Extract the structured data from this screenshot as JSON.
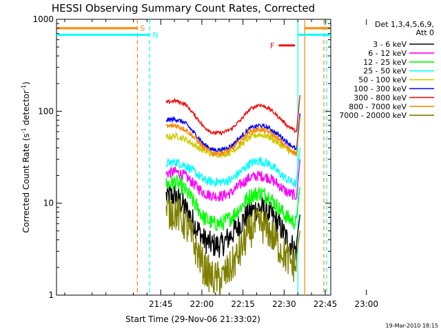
{
  "chart_data": {
    "type": "line",
    "title": "HESSI Observing Summary Count Rates, Corrected",
    "xlabel": "Start Time (29-Nov-06 21:33:02)",
    "ylabel_main": "Corrected Count Rate (s",
    "ylabel_sup1": "-1",
    "ylabel_mid": " detector",
    "ylabel_sup2": "-1",
    "ylabel_end": ")",
    "y_scale": "log",
    "ylim": [
      1,
      1000
    ],
    "y_ticks": [
      {
        "value": 1,
        "label": "1"
      },
      {
        "value": 10,
        "label": "10"
      },
      {
        "value": 100,
        "label": "100"
      },
      {
        "value": 1000,
        "label": "1000"
      }
    ],
    "xlim_minutes": [
      -53,
      47
    ],
    "x_ticks": [
      {
        "minute": -15,
        "label": "21:45"
      },
      {
        "minute": 0,
        "label": "22:00"
      },
      {
        "minute": 15,
        "label": "22:15"
      },
      {
        "minute": 30,
        "label": "22:30"
      },
      {
        "minute": 45,
        "label": "22:45"
      },
      {
        "minute": 60,
        "label": "23:00"
      }
    ],
    "legend_header1": "Det 1,3,4,5,6,9,",
    "legend_header2": "Att 0",
    "legend_placement": "right",
    "series": [
      {
        "name": "3 - 6 keV",
        "color": "#000000",
        "values": [
          12,
          12,
          9,
          6,
          4,
          3.5,
          3.5,
          4.5,
          6,
          8,
          9,
          8,
          6,
          4,
          3
        ],
        "noise": 0.28
      },
      {
        "name": "6 - 12 keV",
        "color": "#ff00ff",
        "values": [
          21,
          22,
          20,
          16,
          13,
          12,
          12,
          13,
          16,
          19,
          20,
          19,
          16,
          13,
          12
        ],
        "noise": 0.12
      },
      {
        "name": "12 - 25 keV",
        "color": "#00ff00",
        "values": [
          16,
          17,
          14,
          10,
          7,
          6,
          6,
          7,
          9,
          12,
          13,
          12,
          9,
          7,
          6
        ],
        "noise": 0.18
      },
      {
        "name": "25 - 50 keV",
        "color": "#00ffff",
        "values": [
          27,
          28,
          26,
          22,
          18,
          17,
          17,
          18,
          22,
          27,
          29,
          27,
          22,
          18,
          16
        ],
        "noise": 0.1
      },
      {
        "name": "50 - 100 keV",
        "color": "#cccc00",
        "values": [
          52,
          54,
          50,
          43,
          37,
          34,
          34,
          36,
          43,
          52,
          56,
          53,
          45,
          38,
          34
        ],
        "noise": 0.07
      },
      {
        "name": "100 - 300 keV",
        "color": "#0000ff",
        "values": [
          80,
          82,
          75,
          58,
          44,
          38,
          38,
          42,
          52,
          65,
          70,
          66,
          56,
          46,
          38
        ],
        "noise": 0.05
      },
      {
        "name": "300 - 800 keV",
        "color": "#ee1111",
        "values": [
          125,
          130,
          120,
          92,
          68,
          58,
          58,
          64,
          80,
          105,
          118,
          108,
          88,
          70,
          60
        ],
        "noise": 0.04
      },
      {
        "name": "800 - 7000 keV",
        "color": "#ff8800",
        "values": [
          68,
          70,
          64,
          52,
          40,
          35,
          35,
          38,
          48,
          60,
          64,
          60,
          50,
          40,
          34
        ],
        "noise": 0.06
      },
      {
        "name": "7000 - 20000 keV",
        "color": "#808000",
        "values": [
          8,
          8,
          6,
          3.5,
          2,
          1.5,
          1.5,
          2,
          3,
          5,
          6,
          5,
          3.5,
          2.5,
          2
        ],
        "noise": 0.4
      }
    ],
    "flag_markers": [
      {
        "label": "S",
        "color": "#ff8800",
        "bar_start_minute": -53,
        "bar_end_minute": -23.5,
        "value": 800
      },
      {
        "label": "N",
        "color": "#00ffff",
        "bar_start_minute": -53,
        "bar_end_minute": -19,
        "value": 680
      },
      {
        "label": "F",
        "color": "#ee1111",
        "bar_start_minute": 28,
        "bar_end_minute": 34,
        "value": 520
      }
    ],
    "vertical_lines": [
      {
        "minute": -23.5,
        "color": "#ff8800",
        "style": "dashed"
      },
      {
        "minute": -19,
        "color": "#00ffff",
        "style": "dashed"
      },
      {
        "minute": 35,
        "color": "#00ffff",
        "style": "solid"
      },
      {
        "minute": 37.5,
        "color": "#ff8800",
        "style": "solid"
      },
      {
        "minute": 44.5,
        "color": "#ff8800",
        "style": "dashed"
      },
      {
        "minute": 45.5,
        "color": "#00ffff",
        "style": "dashed"
      }
    ],
    "right_bars": [
      {
        "color": "#ff8800",
        "start_minute": 37.5,
        "end_minute": 47,
        "value": 800
      },
      {
        "color": "#00ffff",
        "start_minute": 35,
        "end_minute": 47,
        "value": 680
      }
    ],
    "data_start_minute": -13,
    "data_end_minute": 34.5,
    "grid": false
  },
  "footer_stamp": "19-Mar-2010 18:15"
}
